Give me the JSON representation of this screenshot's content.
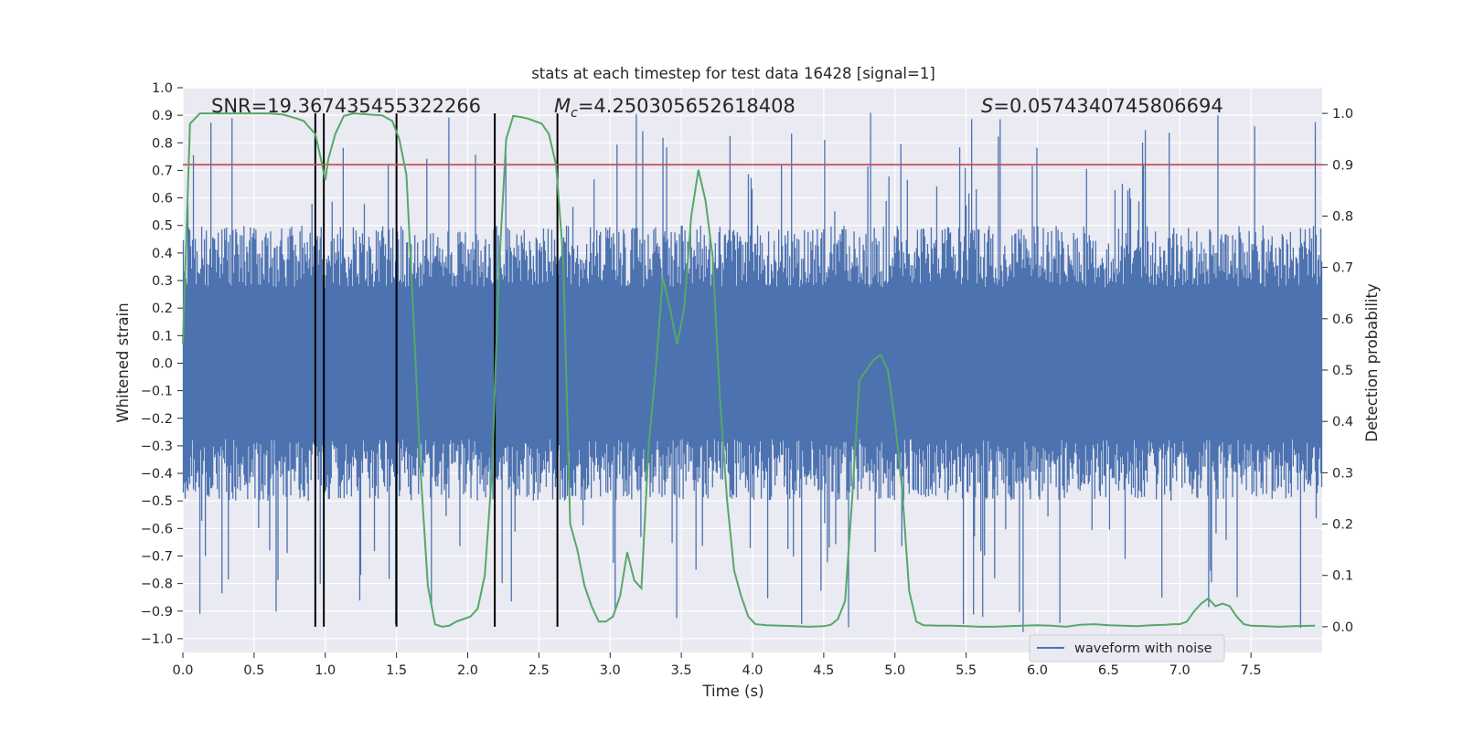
{
  "chart_data": {
    "type": "line",
    "title": "stats at each timestep for test data 16428 [signal=1]",
    "xlabel": "Time (s)",
    "ylabel_left": "Whitened strain",
    "ylabel_right": "Detection probability",
    "xlim": [
      0,
      8
    ],
    "ylim_left": [
      -1.05,
      1.0
    ],
    "ylim_right": [
      -0.05,
      1.05
    ],
    "x_ticks": [
      "0.0",
      "0.5",
      "1.0",
      "1.5",
      "2.0",
      "2.5",
      "3.0",
      "3.5",
      "4.0",
      "4.5",
      "5.0",
      "5.5",
      "6.0",
      "6.5",
      "7.0",
      "7.5"
    ],
    "y_left_ticks": [
      "1.0",
      "0.9",
      "0.8",
      "0.7",
      "0.6",
      "0.5",
      "0.4",
      "0.3",
      "0.2",
      "0.1",
      "0.0",
      "−0.1",
      "−0.2",
      "−0.3",
      "−0.4",
      "−0.5",
      "−0.6",
      "−0.7",
      "−0.8",
      "−0.9",
      "−1.0"
    ],
    "y_right_ticks": [
      "1.0",
      "0.9",
      "0.8",
      "0.7",
      "0.6",
      "0.5",
      "0.4",
      "0.3",
      "0.2",
      "0.1",
      "0.0"
    ],
    "annotations": {
      "snr": "SNR=19.367435455322266",
      "mc": "=4.250305652618408",
      "mc_symbol": "M",
      "mc_sub": "c",
      "s": "=0.0574340745806694",
      "s_symbol": "S"
    },
    "legend": {
      "label": "waveform with noise",
      "position": "lower right"
    },
    "grid": true,
    "threshold": {
      "value": 0.9,
      "axis": "right",
      "color": "#c44e52"
    },
    "vertical_markers": [
      0.93,
      0.99,
      1.5,
      2.19,
      2.63
    ],
    "series": [
      {
        "name": "waveform with noise",
        "axis": "left",
        "color": "#4c72b0",
        "style": "noise",
        "amplitude_typical": 0.5,
        "amplitude_peak_range": [
          -0.99,
          0.91
        ]
      },
      {
        "axis": "right",
        "color": "#55a868",
        "x": [
          0.0,
          0.05,
          0.12,
          0.2,
          0.3,
          0.4,
          0.5,
          0.6,
          0.7,
          0.8,
          0.85,
          0.88,
          0.93,
          0.97,
          1.0,
          1.02,
          1.07,
          1.13,
          1.2,
          1.3,
          1.4,
          1.47,
          1.52,
          1.57,
          1.62,
          1.67,
          1.72,
          1.77,
          1.82,
          1.87,
          1.92,
          1.97,
          2.02,
          2.07,
          2.12,
          2.17,
          2.22,
          2.27,
          2.32,
          2.37,
          2.42,
          2.47,
          2.52,
          2.57,
          2.62,
          2.67,
          2.72,
          2.77,
          2.82,
          2.87,
          2.92,
          2.97,
          3.02,
          3.07,
          3.12,
          3.17,
          3.22,
          3.27,
          3.32,
          3.37,
          3.42,
          3.47,
          3.52,
          3.57,
          3.62,
          3.67,
          3.72,
          3.77,
          3.82,
          3.87,
          3.92,
          3.97,
          4.02,
          4.1,
          4.2,
          4.3,
          4.4,
          4.5,
          4.55,
          4.6,
          4.65,
          4.7,
          4.75,
          4.8,
          4.85,
          4.9,
          4.95,
          5.0,
          5.05,
          5.1,
          5.15,
          5.2,
          5.3,
          5.4,
          5.5,
          5.6,
          5.7,
          5.8,
          5.9,
          6.0,
          6.1,
          6.2,
          6.3,
          6.4,
          6.5,
          6.6,
          6.7,
          6.8,
          6.9,
          6.95,
          7.0,
          7.05,
          7.1,
          7.15,
          7.2,
          7.25,
          7.3,
          7.35,
          7.4,
          7.45,
          7.5,
          7.6,
          7.7,
          7.8,
          7.95
        ],
        "y": [
          0.55,
          0.98,
          1.0,
          1.0,
          1.0,
          1.0,
          1.0,
          1.0,
          0.998,
          0.99,
          0.985,
          0.975,
          0.96,
          0.91,
          0.87,
          0.91,
          0.96,
          0.995,
          1.0,
          0.998,
          0.996,
          0.985,
          0.95,
          0.88,
          0.6,
          0.3,
          0.08,
          0.005,
          0.0,
          0.002,
          0.01,
          0.015,
          0.02,
          0.035,
          0.1,
          0.3,
          0.7,
          0.95,
          0.995,
          0.993,
          0.99,
          0.985,
          0.98,
          0.96,
          0.9,
          0.72,
          0.2,
          0.15,
          0.08,
          0.04,
          0.01,
          0.01,
          0.02,
          0.06,
          0.145,
          0.09,
          0.075,
          0.35,
          0.5,
          0.68,
          0.62,
          0.55,
          0.62,
          0.8,
          0.89,
          0.83,
          0.72,
          0.45,
          0.25,
          0.11,
          0.06,
          0.02,
          0.005,
          0.003,
          0.002,
          0.001,
          0.0,
          0.001,
          0.004,
          0.015,
          0.05,
          0.25,
          0.48,
          0.5,
          0.52,
          0.53,
          0.5,
          0.4,
          0.27,
          0.07,
          0.01,
          0.003,
          0.002,
          0.002,
          0.001,
          0.0,
          0.0,
          0.001,
          0.002,
          0.003,
          0.002,
          0.0,
          0.004,
          0.005,
          0.003,
          0.002,
          0.001,
          0.003,
          0.004,
          0.005,
          0.005,
          0.01,
          0.03,
          0.045,
          0.055,
          0.04,
          0.045,
          0.04,
          0.02,
          0.005,
          0.002,
          0.001,
          0.0,
          0.001,
          0.002
        ]
      }
    ]
  }
}
